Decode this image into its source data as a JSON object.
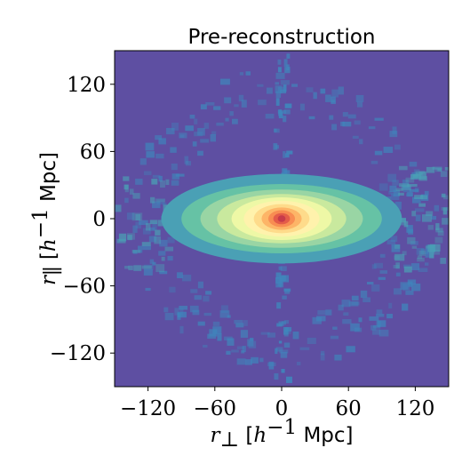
{
  "chart_data": {
    "type": "heatmap",
    "title": "Pre-reconstruction",
    "xlabel": {
      "symbol": "r",
      "sub": "⊥",
      "pre": " [",
      "h": "h",
      "sup": "−1",
      "unit": " Mpc]"
    },
    "ylabel": {
      "symbol": "r",
      "sub": "∥",
      "pre": " [",
      "h": "h",
      "sup": "−1",
      "unit": " Mpc]"
    },
    "xlim": [
      -150,
      150
    ],
    "ylim": [
      -150,
      150
    ],
    "xticks": [
      -120,
      -60,
      0,
      60,
      120
    ],
    "yticks": [
      -120,
      -60,
      0,
      60,
      120
    ],
    "xtick_labels": [
      "−120",
      "−60",
      "0",
      "60",
      "120"
    ],
    "ytick_labels": [
      "−120",
      "−60",
      "0",
      "60",
      "120"
    ],
    "colormap": "Spectral_r",
    "contour_levels": [
      {
        "level": 1,
        "rx": 108,
        "ry": 40,
        "color": "#4aa0b5"
      },
      {
        "level": 2,
        "rx": 90,
        "ry": 31,
        "color": "#66c2a5"
      },
      {
        "level": 3,
        "rx": 73,
        "ry": 26,
        "color": "#99d5a4"
      },
      {
        "level": 4,
        "rx": 58,
        "ry": 22,
        "color": "#c9e99e"
      },
      {
        "level": 5,
        "rx": 45,
        "ry": 19,
        "color": "#eef8a6"
      },
      {
        "level": 6,
        "rx": 34,
        "ry": 16,
        "color": "#fff2ac"
      },
      {
        "level": 7,
        "rx": 25,
        "ry": 13,
        "color": "#fedb8b"
      },
      {
        "level": 8,
        "rx": 18,
        "ry": 10,
        "color": "#fdb567"
      },
      {
        "level": 9,
        "rx": 12,
        "ry": 7.5,
        "color": "#f88d52"
      },
      {
        "level": 10,
        "rx": 7.5,
        "ry": 5,
        "color": "#e45c49"
      },
      {
        "level": 11,
        "rx": 3.5,
        "ry": 3,
        "color": "#c73b4a"
      }
    ],
    "background_color": "#5e4fa2",
    "noise_color": "#3f86bc",
    "grid": false
  }
}
